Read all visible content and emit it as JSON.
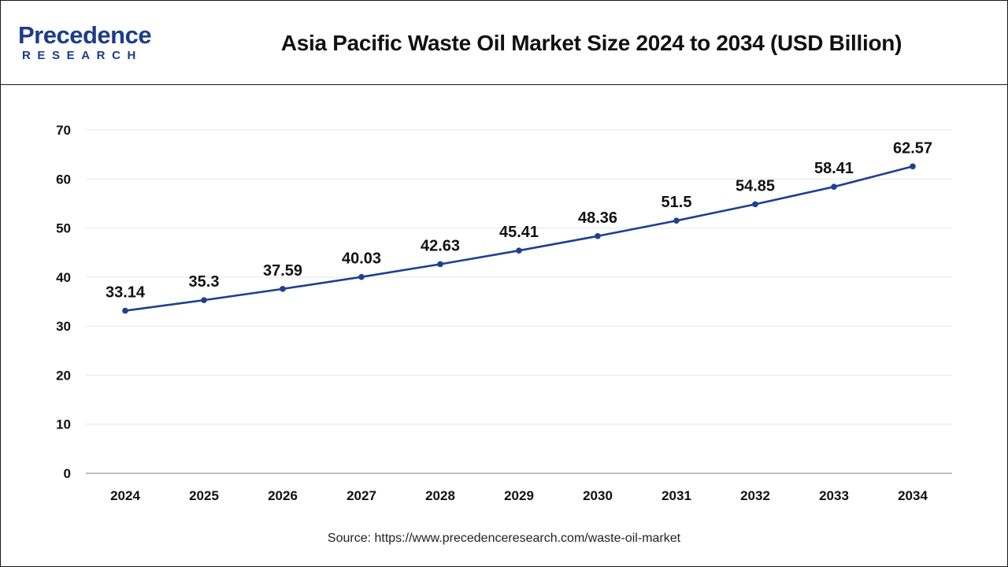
{
  "header": {
    "logo_word": "Precedence",
    "logo_sub": "RESEARCH",
    "title": "Asia Pacific Waste Oil Market Size 2024 to 2034 (USD Billion)"
  },
  "source": "Source: https://www.precedenceresearch.com/waste-oil-market",
  "colors": {
    "line": "#1f3f8f",
    "brand": "#1d3b8b",
    "grid": "#e6e6e6",
    "axis": "#999999"
  },
  "chart_data": {
    "type": "line",
    "title": "Asia Pacific Waste Oil Market Size 2024 to 2034 (USD Billion)",
    "categories": [
      "2024",
      "2025",
      "2026",
      "2027",
      "2028",
      "2029",
      "2030",
      "2031",
      "2032",
      "2033",
      "2034"
    ],
    "series": [
      {
        "values": [
          33.14,
          35.3,
          37.59,
          40.03,
          42.63,
          45.41,
          48.36,
          51.5,
          54.85,
          58.41,
          62.57
        ],
        "labels": [
          "33.14",
          "35.3",
          "37.59",
          "40.03",
          "42.63",
          "45.41",
          "48.36",
          "51.5",
          "54.85",
          "58.41",
          "62.57"
        ]
      }
    ],
    "xlabel": "",
    "ylabel": "",
    "ylim": [
      0,
      70
    ],
    "yticks": [
      0,
      10,
      20,
      30,
      40,
      50,
      60,
      70
    ],
    "grid": true,
    "legend": "none"
  }
}
